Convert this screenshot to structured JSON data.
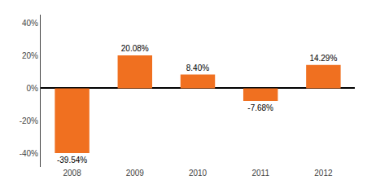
{
  "chart_data": {
    "type": "bar",
    "categories": [
      "2008",
      "2009",
      "2010",
      "2011",
      "2012"
    ],
    "values": [
      -39.54,
      20.08,
      8.4,
      -7.68,
      14.29
    ],
    "value_labels": [
      "-39.54%",
      "20.08%",
      "8.40%",
      "-7.68%",
      "14.29%"
    ],
    "color": "#f07020",
    "ylim": [
      -48,
      45
    ],
    "yticks": [
      {
        "value": -40,
        "label": "-40%"
      },
      {
        "value": -20,
        "label": "-20%"
      },
      {
        "value": 0,
        "label": "0%"
      },
      {
        "value": 20,
        "label": "20%"
      },
      {
        "value": 40,
        "label": "40%"
      }
    ],
    "grid": false,
    "data_labels": true
  }
}
